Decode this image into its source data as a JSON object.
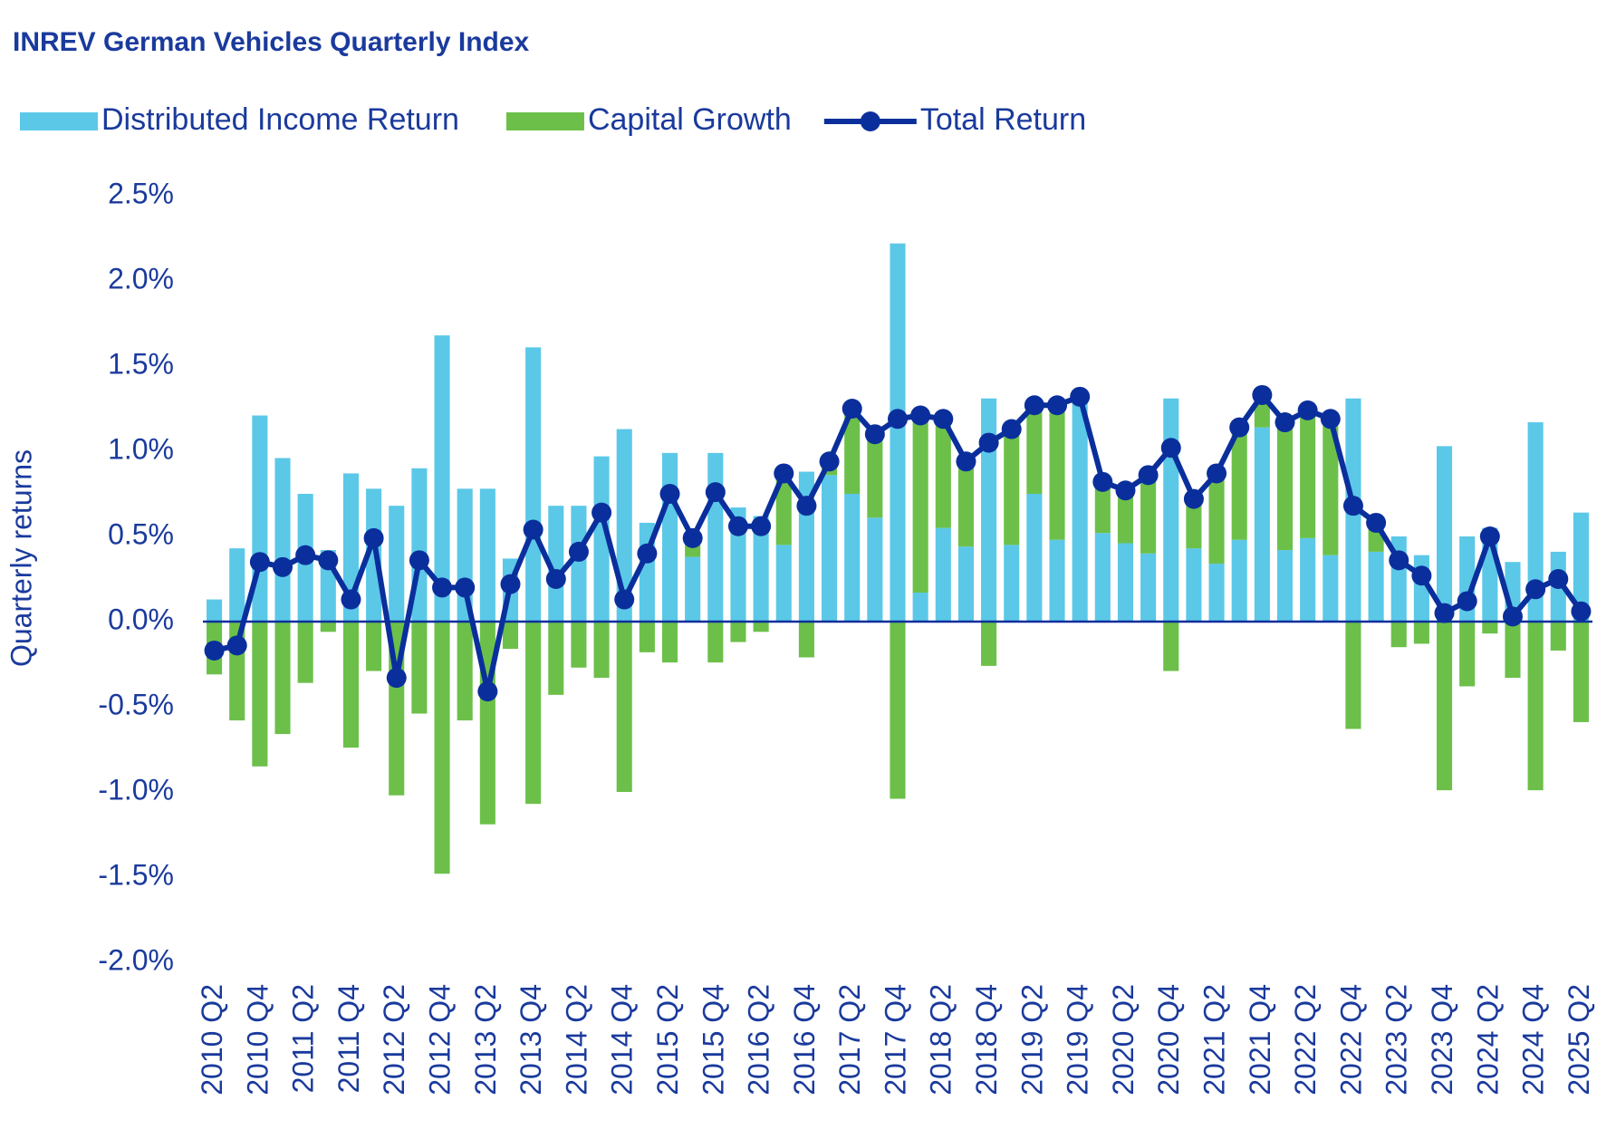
{
  "chart_data": {
    "type": "stacked_bar_line",
    "title": "INREV German Vehicles Quarterly Index",
    "y_label": "Quarterly returns",
    "categories": [
      "2010 Q2",
      null,
      "2010 Q4",
      null,
      "2011 Q2",
      null,
      "2011 Q4",
      null,
      "2012 Q2",
      null,
      "2012 Q4",
      null,
      "2013 Q2",
      null,
      "2013 Q4",
      null,
      "2014 Q2",
      null,
      "2014 Q4",
      null,
      "2015 Q2",
      null,
      "2015 Q4",
      null,
      "2016 Q2",
      null,
      "2016 Q4",
      null,
      "2017 Q2",
      null,
      "2017 Q4",
      null,
      "2018 Q2",
      null,
      "2018 Q4",
      null,
      "2019 Q2",
      null,
      "2019 Q4",
      null,
      "2020 Q2",
      null,
      "2020 Q4",
      null,
      "2021 Q2",
      null,
      "2021 Q4",
      null,
      "2022 Q2",
      null,
      "2022 Q4",
      null,
      "2023 Q2",
      null,
      "2023 Q4",
      null,
      "2024 Q2",
      null,
      "2024 Q4",
      null,
      "2025 Q2"
    ],
    "series": [
      {
        "name": "Distributed Income Return",
        "type": "bar",
        "color": "#5bc8e8",
        "values": [
          0.13,
          0.43,
          1.21,
          0.96,
          0.75,
          0.42,
          0.87,
          0.78,
          0.68,
          0.9,
          1.68,
          0.78,
          0.78,
          0.37,
          1.61,
          0.68,
          0.68,
          0.97,
          1.13,
          0.58,
          0.99,
          0.38,
          0.99,
          0.67,
          0.62,
          0.45,
          0.88,
          0.86,
          0.75,
          0.61,
          2.22,
          0.17,
          0.55,
          0.44,
          1.31,
          0.45,
          0.75,
          0.48,
          1.28,
          0.52,
          0.46,
          0.4,
          1.31,
          0.43,
          0.34,
          0.48,
          1.14,
          0.42,
          0.49,
          0.39,
          1.31,
          0.41,
          0.5,
          0.39,
          1.03,
          0.5,
          0.55,
          0.35,
          1.17,
          0.41,
          0.64
        ]
      },
      {
        "name": "Capital Growth",
        "type": "bar",
        "color": "#6cc04a",
        "values": [
          -0.31,
          -0.58,
          -0.85,
          -0.66,
          -0.36,
          -0.06,
          -0.74,
          -0.29,
          -1.02,
          -0.54,
          -1.48,
          -0.58,
          -1.19,
          -0.16,
          -1.07,
          -0.43,
          -0.27,
          -0.33,
          -1.0,
          -0.18,
          -0.24,
          0.1,
          -0.24,
          -0.12,
          -0.06,
          0.42,
          -0.21,
          0.08,
          0.49,
          0.49,
          -1.04,
          1.04,
          0.63,
          0.5,
          -0.26,
          0.67,
          0.52,
          0.79,
          0.04,
          0.3,
          0.31,
          0.46,
          -0.29,
          0.29,
          0.53,
          0.66,
          0.19,
          0.75,
          0.75,
          0.8,
          -0.63,
          0.17,
          -0.15,
          -0.13,
          -0.99,
          -0.38,
          -0.07,
          -0.33,
          -0.99,
          -0.17,
          -0.59
        ]
      },
      {
        "name": "Total Return",
        "type": "line",
        "color": "#0a2f9c",
        "values": [
          -0.17,
          -0.14,
          0.35,
          0.32,
          0.39,
          0.36,
          0.13,
          0.49,
          -0.33,
          0.36,
          0.2,
          0.2,
          -0.41,
          0.22,
          0.54,
          0.25,
          0.41,
          0.64,
          0.13,
          0.4,
          0.75,
          0.49,
          0.76,
          0.56,
          0.56,
          0.87,
          0.68,
          0.94,
          1.25,
          1.1,
          1.19,
          1.21,
          1.19,
          0.94,
          1.05,
          1.13,
          1.27,
          1.27,
          1.32,
          0.82,
          0.77,
          0.86,
          1.02,
          0.72,
          0.87,
          1.14,
          1.33,
          1.17,
          1.24,
          1.19,
          0.68,
          0.58,
          0.36,
          0.27,
          0.05,
          0.12,
          0.5,
          0.03,
          0.19,
          0.25,
          0.06
        ]
      }
    ],
    "ylim": [
      -2.0,
      2.5
    ],
    "yticks": [
      {
        "value": 2.5,
        "label": "2.5%"
      },
      {
        "value": 2.0,
        "label": "2.0%"
      },
      {
        "value": 1.5,
        "label": "1.5%"
      },
      {
        "value": 1.0,
        "label": "1.0%"
      },
      {
        "value": 0.5,
        "label": "0.5%"
      },
      {
        "value": 0.0,
        "label": "0.0%"
      },
      {
        "value": -0.5,
        "label": "-0.5%"
      },
      {
        "value": -1.0,
        "label": "-1.0%"
      },
      {
        "value": -1.5,
        "label": "-1.5%"
      },
      {
        "value": -2.0,
        "label": "-2.0%"
      }
    ],
    "grid": false,
    "legend": "top-left"
  }
}
